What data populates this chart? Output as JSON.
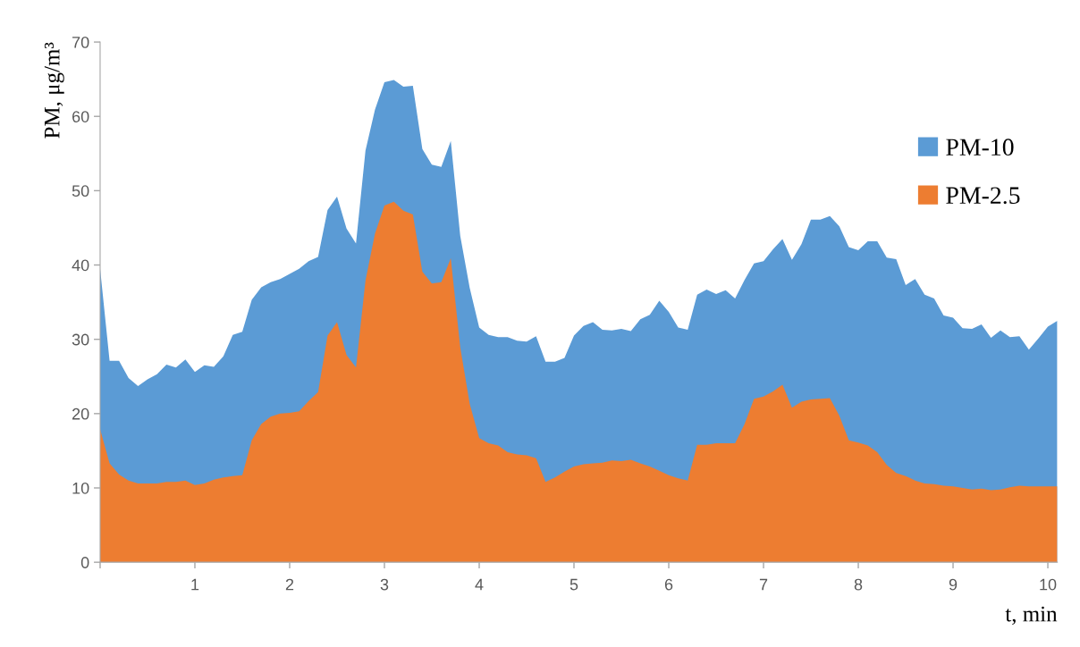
{
  "chart_data": {
    "type": "area",
    "xlabel": "t, min",
    "ylabel": "PM, μg/m³",
    "x": [
      0.0,
      0.1,
      0.2,
      0.3,
      0.4,
      0.5,
      0.6,
      0.7,
      0.8,
      0.9,
      1.0,
      1.1,
      1.2,
      1.3,
      1.4,
      1.5,
      1.6,
      1.7,
      1.8,
      1.9,
      2.0,
      2.1,
      2.2,
      2.3,
      2.4,
      2.5,
      2.6,
      2.7,
      2.8,
      2.9,
      3.0,
      3.1,
      3.2,
      3.3,
      3.4,
      3.5,
      3.6,
      3.7,
      3.8,
      3.9,
      4.0,
      4.1,
      4.2,
      4.3,
      4.4,
      4.5,
      4.6,
      4.7,
      4.8,
      4.9,
      5.0,
      5.1,
      5.2,
      5.3,
      5.4,
      5.5,
      5.6,
      5.7,
      5.8,
      5.9,
      6.0,
      6.1,
      6.2,
      6.3,
      6.4,
      6.5,
      6.6,
      6.7,
      6.8,
      6.9,
      7.0,
      7.1,
      7.2,
      7.3,
      7.4,
      7.5,
      7.6,
      7.7,
      7.8,
      7.9,
      8.0,
      8.1,
      8.2,
      8.3,
      8.4,
      8.5,
      8.6,
      8.7,
      8.8,
      8.9,
      9.0,
      9.1,
      9.2,
      9.3,
      9.4,
      9.5,
      9.6,
      9.7,
      9.8,
      9.9,
      10.0,
      10.1
    ],
    "series": [
      {
        "name": "PM-10",
        "color": "#5b9bd5",
        "values": [
          39.5,
          27.1,
          27.1,
          24.8,
          23.7,
          24.6,
          25.3,
          26.6,
          26.2,
          27.3,
          25.6,
          26.5,
          26.3,
          27.7,
          30.6,
          31.0,
          35.3,
          37.0,
          37.7,
          38.1,
          38.8,
          39.5,
          40.5,
          41.1,
          47.4,
          49.2,
          44.9,
          42.9,
          55.4,
          60.9,
          64.6,
          64.9,
          64.0,
          64.1,
          55.6,
          53.5,
          53.2,
          56.7,
          43.9,
          36.9,
          31.6,
          30.6,
          30.3,
          30.3,
          29.8,
          29.7,
          30.4,
          27.0,
          27.0,
          27.5,
          30.5,
          31.8,
          32.3,
          31.3,
          31.2,
          31.4,
          31.1,
          32.7,
          33.3,
          35.2,
          33.7,
          31.6,
          31.3,
          36.0,
          36.7,
          36.1,
          36.6,
          35.5,
          38.0,
          40.2,
          40.5,
          42.1,
          43.5,
          40.7,
          42.8,
          46.1,
          46.1,
          46.6,
          45.2,
          42.4,
          42.0,
          43.2,
          43.2,
          41.0,
          40.8,
          37.3,
          38.1,
          36.0,
          35.5,
          33.2,
          32.9,
          31.5,
          31.4,
          32.0,
          30.2,
          31.2,
          30.3,
          30.4,
          28.6,
          30.1,
          31.7,
          32.5
        ]
      },
      {
        "name": "PM-2.5",
        "color": "#ed7d31",
        "values": [
          17.9,
          13.3,
          11.8,
          11.0,
          10.6,
          10.6,
          10.6,
          10.8,
          10.8,
          11.0,
          10.4,
          10.6,
          11.1,
          11.4,
          11.6,
          11.7,
          16.4,
          18.6,
          19.6,
          20.0,
          20.1,
          20.3,
          21.7,
          22.9,
          30.5,
          32.3,
          27.9,
          26.2,
          37.9,
          44.2,
          48.0,
          48.5,
          47.3,
          46.8,
          39.1,
          37.5,
          37.7,
          40.9,
          28.9,
          21.3,
          16.7,
          16.0,
          15.7,
          14.8,
          14.5,
          14.4,
          14.0,
          10.8,
          11.4,
          12.2,
          12.9,
          13.2,
          13.3,
          13.4,
          13.7,
          13.6,
          13.8,
          13.3,
          12.9,
          12.3,
          11.7,
          11.3,
          11.0,
          15.8,
          15.8,
          16.0,
          16.0,
          16.0,
          18.6,
          22.0,
          22.3,
          23.0,
          23.9,
          20.8,
          21.6,
          21.9,
          22.0,
          22.1,
          19.7,
          16.4,
          16.1,
          15.7,
          14.8,
          13.1,
          12.0,
          11.6,
          11.0,
          10.6,
          10.5,
          10.3,
          10.2,
          10.0,
          9.8,
          9.9,
          9.7,
          9.8,
          10.1,
          10.3,
          10.2,
          10.2,
          10.2,
          10.2
        ]
      }
    ],
    "xlim": [
      0,
      10.1
    ],
    "xticks": [
      {
        "value": 0,
        "label": null
      },
      1,
      2,
      3,
      4,
      5,
      6,
      7,
      8,
      9,
      10
    ],
    "ylim": [
      0,
      70
    ],
    "yticks": [
      0,
      10,
      20,
      30,
      40,
      50,
      60,
      70
    ],
    "grid": false,
    "legend": "top right"
  }
}
